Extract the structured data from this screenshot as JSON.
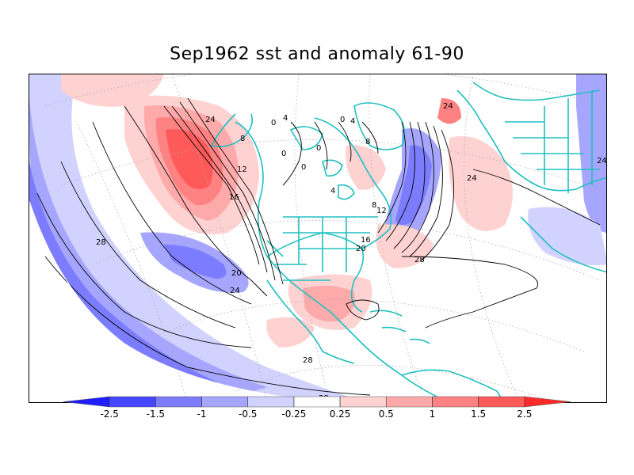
{
  "title": "Sep1962 sst and anomaly 61-90",
  "colorbar": {
    "colors": [
      "#1e1eff",
      "#4646ff",
      "#7c7cff",
      "#a6a6ff",
      "#d2d2ff",
      "#ffffff",
      "#ffd2d2",
      "#ffaaaa",
      "#ff8282",
      "#ff5a5a",
      "#ff2a2a"
    ],
    "ticks": [
      "-2.5",
      "-1.5",
      "-1",
      "-0.5",
      "-0.25",
      "0.25",
      "0.5",
      "1",
      "1.5",
      "2.5"
    ]
  },
  "contours": {
    "labels": [
      "0",
      "4",
      "8",
      "12",
      "16",
      "20",
      "24",
      "28",
      "0",
      "0",
      "0",
      "4",
      "8",
      "0",
      "4",
      "8",
      "12",
      "16",
      "20",
      "24",
      "28",
      "28",
      "28",
      "24",
      "24",
      "24"
    ]
  },
  "land_color": "#20c0c0",
  "map_bg": "#ffffff"
}
